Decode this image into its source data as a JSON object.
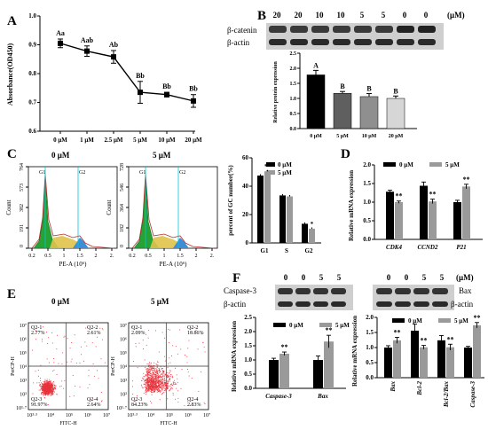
{
  "panels": {
    "A": {
      "label": "A",
      "chart_data": {
        "type": "line",
        "ylabel": "Absorbance(OD450)",
        "categories": [
          "0 μM",
          "1 μM",
          "2.5 μM",
          "5 μM",
          "10 μM",
          "20 μM"
        ],
        "values": [
          0.905,
          0.878,
          0.858,
          0.735,
          0.727,
          0.705
        ],
        "errors": [
          0.015,
          0.018,
          0.022,
          0.038,
          0.008,
          0.022
        ],
        "letters": [
          "Aa",
          "Aab",
          "Ab",
          "Bb",
          "Bb",
          "Bb"
        ],
        "yticks": [
          "0.6",
          "0.7",
          "0.8",
          "0.9",
          "1.0"
        ],
        "ylim": [
          0.6,
          1.0
        ]
      }
    },
    "B": {
      "label": "B",
      "conc_labels": [
        "20",
        "20",
        "10",
        "10",
        "5",
        "5",
        "0",
        "0"
      ],
      "unit": "(μM)",
      "blot_labels": [
        "β-catenin",
        "β-actin"
      ],
      "chart_data": {
        "type": "bar",
        "ylabel": "Relative protein expression",
        "categories": [
          "0 μM",
          "5 μM",
          "10 μM",
          "20 μM"
        ],
        "values": [
          1.78,
          1.17,
          1.06,
          1.0
        ],
        "errors": [
          0.15,
          0.06,
          0.1,
          0.08
        ],
        "letters": [
          "A",
          "B",
          "B",
          "B"
        ],
        "colors": [
          "#000000",
          "#5f5f5f",
          "#8f8f8f",
          "#d6d6d6"
        ],
        "yticks": [
          "0.0",
          "0.5",
          "1.0",
          "1.5",
          "2.0",
          "2.5"
        ],
        "ylim": [
          0,
          2.5
        ]
      }
    },
    "C": {
      "label": "C",
      "hist_titles": [
        "0 μM",
        "5 μM"
      ],
      "hist_ylabel": "Count",
      "hist_xlabel": "PE-A (10⁶)",
      "hist_yticks_left": [
        "0",
        "191",
        "382",
        "573",
        "764"
      ],
      "hist_yticks_right": [
        "0",
        "182",
        "364",
        "546",
        "728"
      ],
      "hist_xticks": [
        "0.2",
        "0.5",
        "1",
        "1.5",
        "2",
        "2."
      ],
      "gate_labels": [
        "G1",
        "G2"
      ],
      "chart_data": {
        "type": "bar",
        "ylabel": "percent of GC number(%)",
        "categories": [
          "G1",
          "S",
          "G2"
        ],
        "series": [
          {
            "name": "0 μM",
            "values": [
              47.5,
              33.5,
              13.5
            ]
          },
          {
            "name": "5 μM",
            "values": [
              50.5,
              32.8,
              10.0
            ]
          }
        ],
        "stars": [
          "**",
          "",
          "*"
        ],
        "yticks": [
          "0",
          "20",
          "40",
          "60"
        ],
        "ylim": [
          0,
          60
        ]
      }
    },
    "D": {
      "label": "D",
      "chart_data": {
        "type": "bar",
        "ylabel": "Relative mRNA expression",
        "categories": [
          "CDK4",
          "CCND2",
          "P21"
        ],
        "series": [
          {
            "name": "0 μM",
            "values": [
              1.28,
              1.44,
              1.0
            ]
          },
          {
            "name": "5 μM",
            "values": [
              1.0,
              1.02,
              1.42
            ]
          }
        ],
        "errors0": [
          0.04,
          0.1,
          0.05
        ],
        "errors1": [
          0.03,
          0.06,
          0.06
        ],
        "stars": [
          "**",
          "**",
          "**"
        ],
        "yticks": [
          "0.0",
          "0.5",
          "1.0",
          "1.5",
          "2.0"
        ],
        "ylim": [
          0,
          2.0
        ]
      }
    },
    "E": {
      "label": "E",
      "titles": [
        "0 μM",
        "5 μM"
      ],
      "xlabel": "FITC-H",
      "ylabel": "PerCP-H",
      "quad_left": [
        [
          "Q2-1",
          "2.77%"
        ],
        [
          "Q2-2",
          "2.61%"
        ],
        [
          "Q2-3",
          "91.97%"
        ],
        [
          "Q2-4",
          "2.64%"
        ]
      ],
      "quad_right": [
        [
          "Q2-1",
          "2.09%"
        ],
        [
          "Q2-2",
          "10.86%"
        ],
        [
          "Q2-3",
          "84.23%"
        ],
        [
          "Q2-4",
          "2.83%"
        ]
      ],
      "xticks": [
        "10³·³",
        "10⁴",
        "10⁵",
        "10⁶",
        "10⁷"
      ],
      "yticks": [
        "10¹·⁷",
        "10²",
        "10³",
        "10⁴",
        "10⁵",
        "10⁶",
        "10⁷"
      ]
    },
    "F": {
      "label": "F",
      "conc_left": [
        "0",
        "0",
        "5",
        "5"
      ],
      "conc_right": [
        "0",
        "0",
        "5",
        "5"
      ],
      "unit": "(μM)",
      "blot_left_labels": [
        "Caspase-3",
        "β-actin"
      ],
      "blot_right_labels": [
        "Bax",
        "β-actin"
      ],
      "chart_left": {
        "type": "bar",
        "ylabel": "Relative mRNA expression",
        "categories": [
          "Caspase-3",
          "Bax"
        ],
        "series": [
          {
            "name": "0 μM",
            "values": [
              1.0,
              1.0
            ]
          },
          {
            "name": "5 μM",
            "values": [
              1.22,
              1.65
            ]
          }
        ],
        "errors0": [
          0.06,
          0.14
        ],
        "errors1": [
          0.06,
          0.22
        ],
        "stars": [
          "**",
          "**"
        ],
        "yticks": [
          "0.0",
          "0.5",
          "1.0",
          "1.5",
          "2.0",
          "2.5"
        ],
        "ylim": [
          0,
          2.5
        ]
      },
      "chart_right": {
        "type": "bar",
        "ylabel": "Relative mRNA expression",
        "categories": [
          "Bax",
          "Bcl-2",
          "Bcl-2/Bax",
          "Caspase-3"
        ],
        "series": [
          {
            "name": "0 μM",
            "values": [
              1.0,
              1.56,
              1.24,
              1.0
            ]
          },
          {
            "name": "5 μM",
            "values": [
              1.24,
              1.01,
              1.01,
              1.74
            ]
          }
        ],
        "errors0": [
          0.06,
          0.22,
          0.16,
          0.04
        ],
        "errors1": [
          0.1,
          0.06,
          0.1,
          0.09
        ],
        "stars": [
          "**",
          "**",
          "**",
          "**"
        ],
        "yticks": [
          "0.0",
          "0.5",
          "1.0",
          "1.5",
          "2.0"
        ],
        "ylim": [
          0,
          2.0
        ]
      }
    }
  },
  "colors": {
    "black_bar": "#000000",
    "gray_bar": "#9a9a9a",
    "gate_green": "#27a234",
    "gate_yellow": "#e0c34a",
    "gate_blue": "#3b8fd8",
    "gate_line": "#00c8d8",
    "scatter_red": "#e8323c"
  }
}
